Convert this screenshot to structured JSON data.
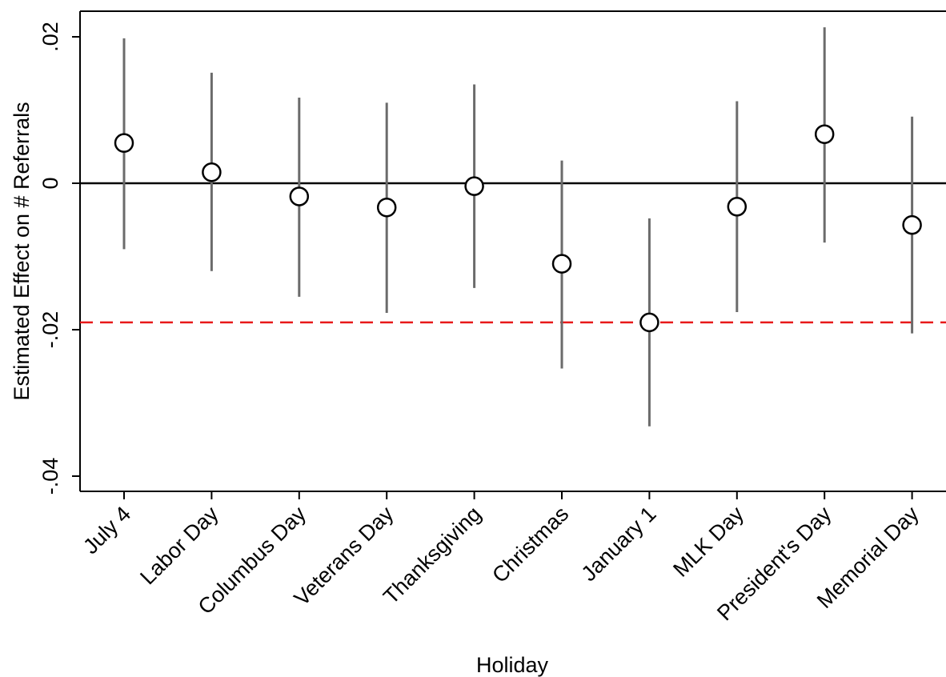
{
  "chart_data": {
    "type": "scatter",
    "subtype": "coefficient-plot-with-confidence-intervals",
    "title": "",
    "xlabel": "Holiday",
    "ylabel": "Estimated Effect on # Referrals",
    "ylim": [
      -0.042,
      0.0235
    ],
    "y_ticks": [
      {
        "value": 0.02,
        "label": ".02"
      },
      {
        "value": 0,
        "label": "0"
      },
      {
        "value": -0.02,
        "label": "-.02"
      },
      {
        "value": -0.04,
        "label": "-.04"
      }
    ],
    "categories": [
      "July 4",
      "Labor Day",
      "Columbus Day",
      "Veterans Day",
      "Thanksgiving",
      "Christmas",
      "January 1",
      "MLK Day",
      "President's Day",
      "Memorial Day"
    ],
    "estimates": [
      0.0055,
      0.0015,
      -0.0018,
      -0.0033,
      -0.0004,
      -0.011,
      -0.019,
      -0.0032,
      0.0067,
      -0.0057
    ],
    "ci_low": [
      -0.009,
      -0.012,
      -0.0155,
      -0.0177,
      -0.0143,
      -0.0253,
      -0.0332,
      -0.0176,
      -0.0081,
      -0.0205
    ],
    "ci_high": [
      0.0198,
      0.0151,
      0.0117,
      0.011,
      0.0135,
      0.0031,
      -0.0048,
      0.0112,
      0.0213,
      0.0091
    ],
    "reference_lines": [
      {
        "y": 0,
        "style": "solid",
        "color": "#000000"
      },
      {
        "y": -0.019,
        "style": "dashed",
        "color": "#e8191a"
      }
    ],
    "grid": false,
    "colors": {
      "ci_line": "#6b6b6b",
      "marker": "#000000",
      "axis": "#000000"
    }
  }
}
